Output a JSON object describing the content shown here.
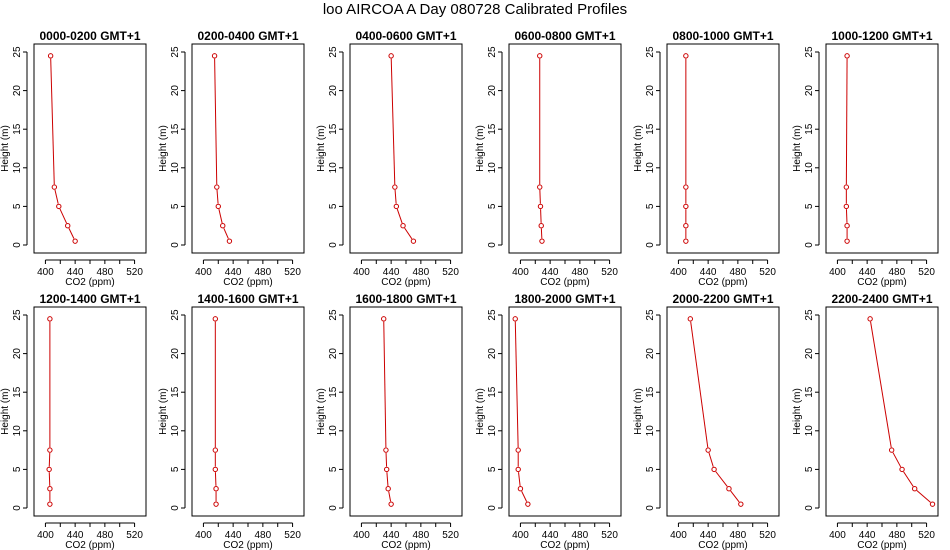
{
  "title": "loo AIRCOA A  Day 080728  Calibrated Profiles",
  "colors": {
    "profile": "#cc0000",
    "axis": "#000000"
  },
  "chart_data": {
    "type": "line",
    "layout": "2 rows x 6 panels",
    "xlabel": "CO2 (ppm)",
    "ylabel": "Height (m)",
    "xlim": [
      390,
      530
    ],
    "ylim": [
      0,
      25
    ],
    "xticks": [
      400,
      440,
      480,
      520
    ],
    "xtick_labels": [
      "400",
      "",
      "440",
      "",
      "480",
      "",
      "520"
    ],
    "xtick_positions": [
      400,
      420,
      440,
      460,
      480,
      500,
      520
    ],
    "yticks": [
      0,
      5,
      10,
      15,
      20,
      25
    ],
    "heights": [
      0.5,
      2.5,
      5,
      7.5,
      24.5
    ],
    "panels": [
      {
        "title": "0000-0200 GMT+1",
        "co2": [
          440,
          430,
          418,
          412,
          407
        ]
      },
      {
        "title": "0200-0400 GMT+1",
        "co2": [
          435,
          426,
          420,
          418,
          415
        ]
      },
      {
        "title": "0400-0600 GMT+1",
        "co2": [
          470,
          456,
          447,
          445,
          440
        ]
      },
      {
        "title": "0600-0800 GMT+1",
        "co2": [
          429,
          428,
          427,
          426,
          426
        ]
      },
      {
        "title": "0800-1000 GMT+1",
        "co2": [
          410,
          410,
          410,
          410,
          410
        ]
      },
      {
        "title": "1000-1200 GMT+1",
        "co2": [
          413,
          413,
          412,
          412,
          413
        ]
      },
      {
        "title": "1200-1400 GMT+1",
        "co2": [
          406,
          406,
          405,
          406,
          406
        ]
      },
      {
        "title": "1400-1600 GMT+1",
        "co2": [
          417,
          417,
          416,
          416,
          416
        ]
      },
      {
        "title": "1600-1800 GMT+1",
        "co2": [
          440,
          436,
          434,
          433,
          430
        ]
      },
      {
        "title": "1800-2000 GMT+1",
        "co2": [
          410,
          400,
          397,
          397,
          393
        ]
      },
      {
        "title": "2000-2200 GMT+1",
        "co2": [
          484,
          468,
          448,
          440,
          416
        ]
      },
      {
        "title": "2200-2400 GMT+1",
        "co2": [
          528,
          504,
          487,
          473,
          444
        ]
      }
    ]
  }
}
